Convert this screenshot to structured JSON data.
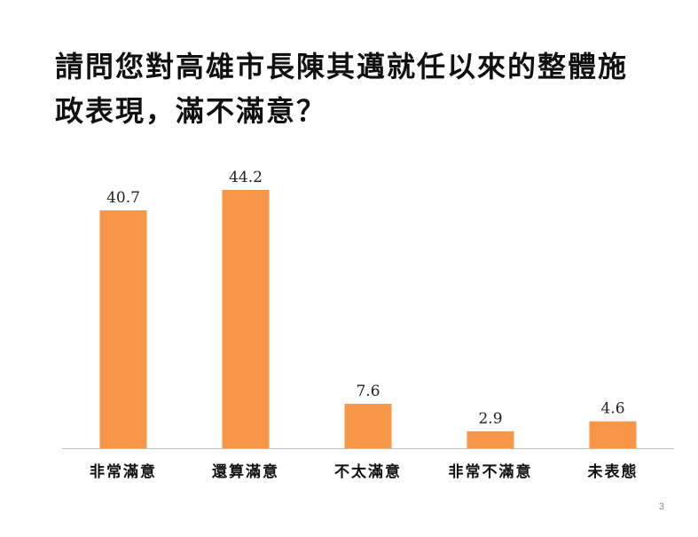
{
  "slide": {
    "title_lines": [
      "請問您對高雄市長陳其邁就任以來的整體施",
      "政表現，滿不滿意？"
    ],
    "page_number": "3"
  },
  "chart_data": {
    "type": "bar",
    "categories": [
      "非常滿意",
      "還算滿意",
      "不太滿意",
      "非常不滿意",
      "未表態"
    ],
    "values": [
      40.7,
      44.2,
      7.6,
      2.9,
      4.6
    ],
    "value_labels": [
      "40.7",
      "44.2",
      "7.6",
      "2.9",
      "4.6"
    ],
    "ylim": [
      0,
      44.2
    ],
    "grid": false,
    "legend": "none",
    "bar_color": "#F79646",
    "axis_color": "#BFBFBF"
  }
}
